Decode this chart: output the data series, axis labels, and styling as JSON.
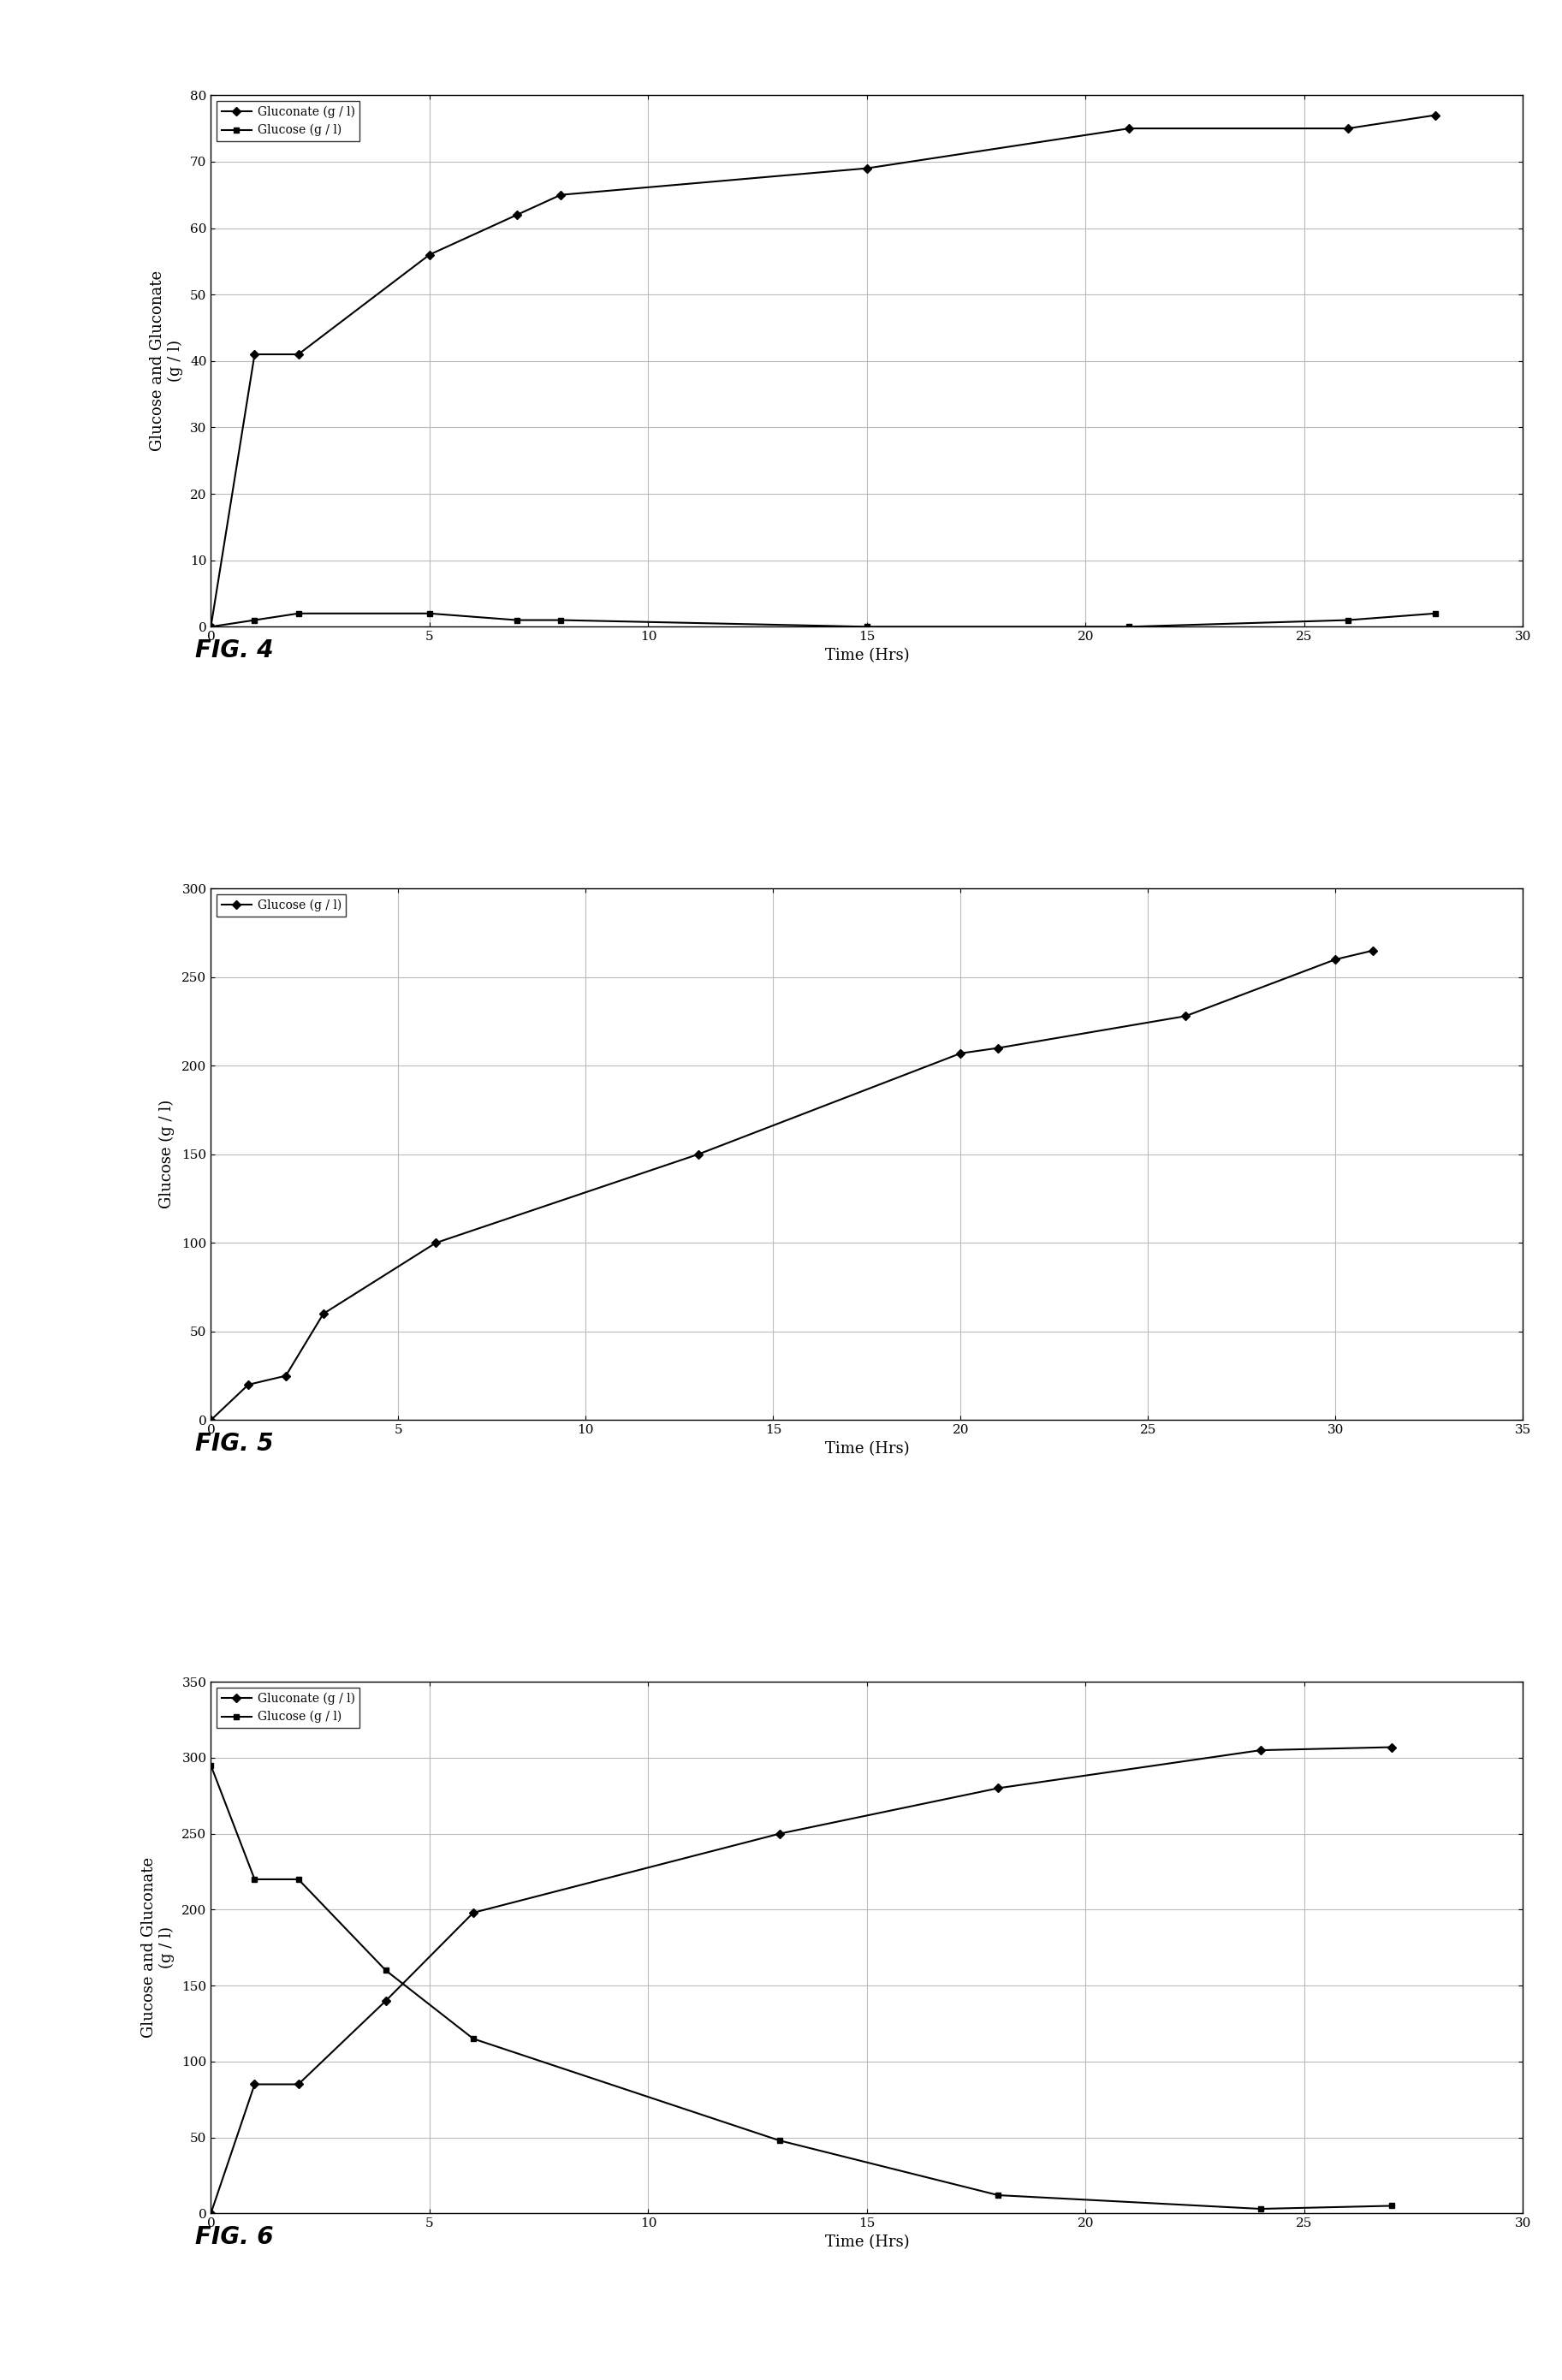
{
  "fig4": {
    "gluconate_x": [
      0,
      1,
      2,
      5,
      7,
      8,
      15,
      21,
      26,
      28
    ],
    "gluconate_y": [
      0,
      41,
      41,
      56,
      62,
      65,
      69,
      75,
      75,
      77
    ],
    "glucose_x": [
      0,
      1,
      2,
      5,
      7,
      8,
      15,
      21,
      26,
      28
    ],
    "glucose_y": [
      0,
      1,
      2,
      2,
      1,
      1,
      0,
      0,
      1,
      2
    ],
    "xlabel": "Time (Hrs)",
    "ylabel": "Glucose and Gluconate\n(g / l)",
    "xlim": [
      0,
      30
    ],
    "ylim": [
      0,
      80
    ],
    "yticks": [
      0,
      10,
      20,
      30,
      40,
      50,
      60,
      70,
      80
    ],
    "xticks": [
      0,
      5,
      10,
      15,
      20,
      25,
      30
    ],
    "legend1": "Gluconate (g / l)",
    "legend2": "Glucose (g / l)",
    "fig_label": "FIG. 4"
  },
  "fig5": {
    "glucose_x": [
      0,
      1,
      2,
      3,
      6,
      13,
      20,
      21,
      26,
      30,
      31
    ],
    "glucose_y": [
      0,
      20,
      25,
      60,
      100,
      150,
      207,
      210,
      228,
      260,
      265
    ],
    "xlabel": "Time (Hrs)",
    "ylabel": "Glucose (g / l)",
    "xlim": [
      0,
      35
    ],
    "ylim": [
      0,
      300
    ],
    "yticks": [
      0,
      50,
      100,
      150,
      200,
      250,
      300
    ],
    "xticks": [
      0,
      5,
      10,
      15,
      20,
      25,
      30,
      35
    ],
    "legend1": "Glucose (g / l)",
    "fig_label": "FIG. 5"
  },
  "fig6": {
    "gluconate_x": [
      0,
      1,
      2,
      4,
      6,
      13,
      18,
      24,
      27
    ],
    "gluconate_y": [
      0,
      85,
      85,
      140,
      198,
      250,
      280,
      305,
      307
    ],
    "glucose_x": [
      0,
      1,
      2,
      4,
      6,
      13,
      18,
      24,
      27
    ],
    "glucose_y": [
      295,
      220,
      220,
      160,
      115,
      48,
      12,
      3,
      5
    ],
    "xlabel": "Time (Hrs)",
    "ylabel": "Glucose and Gluconate\n(g / l)",
    "xlim": [
      0,
      30
    ],
    "ylim": [
      0,
      350
    ],
    "yticks": [
      0,
      50,
      100,
      150,
      200,
      250,
      300,
      350
    ],
    "xticks": [
      0,
      5,
      10,
      15,
      20,
      25,
      30
    ],
    "legend1": "Gluconate (g / l)",
    "legend2": "Glucose (g / l)",
    "fig_label": "FIG. 6"
  },
  "line_color": "#000000",
  "marker_gluconate": "D",
  "marker_glucose": "s",
  "markersize": 5,
  "linewidth": 1.5,
  "bg_color": "#ffffff",
  "grid_color": "#bbbbbb",
  "font_family": "DejaVu Serif",
  "tick_fontsize": 11,
  "label_fontsize": 13,
  "legend_fontsize": 11,
  "figlabel_fontsize": 20
}
